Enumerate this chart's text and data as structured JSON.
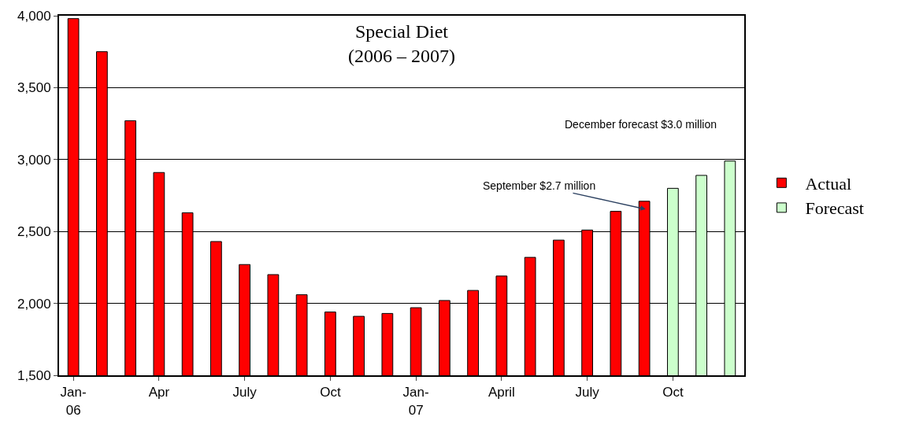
{
  "chart_data": {
    "type": "bar",
    "title": "Special Diet\n(2006 – 2007)",
    "categories": [
      "Jan-\n06",
      null,
      null,
      "Apr",
      null,
      null,
      "July",
      null,
      null,
      "Oct",
      null,
      null,
      "Jan-\n07",
      null,
      null,
      "April",
      null,
      null,
      "July",
      null,
      null,
      "Oct",
      null,
      null
    ],
    "series": [
      {
        "name": "Actual",
        "color": "#ff0000",
        "values": [
          3980,
          3750,
          3270,
          2910,
          2630,
          2430,
          2270,
          2200,
          2060,
          1940,
          1910,
          1930,
          1970,
          2020,
          2090,
          2190,
          2320,
          2440,
          2510,
          2640,
          2710,
          null,
          null,
          null
        ]
      },
      {
        "name": "Forecast",
        "color": "#ccffcc",
        "values": [
          null,
          null,
          null,
          null,
          null,
          null,
          null,
          null,
          null,
          null,
          null,
          null,
          null,
          null,
          null,
          null,
          null,
          null,
          null,
          null,
          null,
          2800,
          2890,
          2990
        ]
      }
    ],
    "ylim": [
      1500,
      4000
    ],
    "yticks": [
      {
        "value": 1500,
        "label": "1,500"
      },
      {
        "value": 2000,
        "label": "2,000"
      },
      {
        "value": 2500,
        "label": "2,500"
      },
      {
        "value": 3000,
        "label": "3,000"
      },
      {
        "value": 3500,
        "label": "3,500"
      },
      {
        "value": 4000,
        "label": "4,000"
      }
    ],
    "grid": "y",
    "legend": "right",
    "annotations": [
      "December forecast $3.0 million",
      "September $2.7 million"
    ]
  }
}
